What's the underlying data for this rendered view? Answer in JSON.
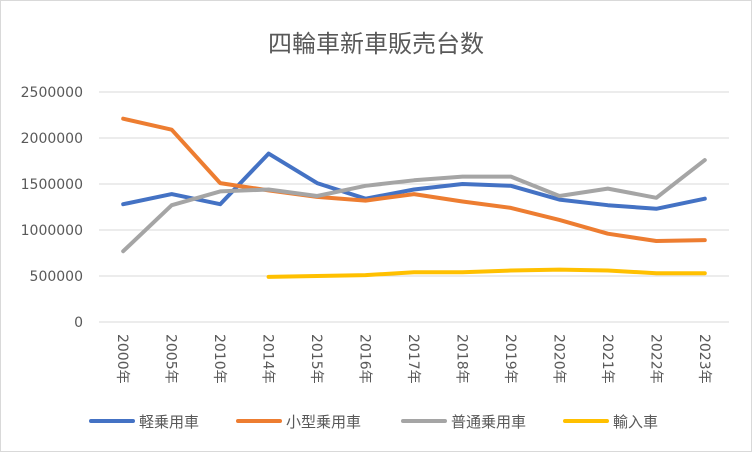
{
  "chart_data": {
    "type": "line",
    "title": "四輪車新車販売台数",
    "categories": [
      "2000年",
      "2005年",
      "2010年",
      "2014年",
      "2015年",
      "2016年",
      "2017年",
      "2018年",
      "2019年",
      "2020年",
      "2021年",
      "2022年",
      "2023年"
    ],
    "y_ticks": [
      "0",
      "500000",
      "1000000",
      "1500000",
      "2000000",
      "2500000"
    ],
    "ylim": [
      0,
      2500000
    ],
    "grid": true,
    "legend_position": "bottom",
    "series": [
      {
        "name": "軽乗用車",
        "color": "#4472C4",
        "values": [
          1280000,
          1390000,
          1280000,
          1830000,
          1510000,
          1340000,
          1440000,
          1500000,
          1480000,
          1330000,
          1270000,
          1230000,
          1340000
        ]
      },
      {
        "name": "小型乗用車",
        "color": "#ED7D31",
        "values": [
          2210000,
          2090000,
          1510000,
          1430000,
          1360000,
          1320000,
          1390000,
          1310000,
          1240000,
          1110000,
          960000,
          880000,
          890000
        ]
      },
      {
        "name": "普通乗用車",
        "color": "#A5A5A5",
        "values": [
          770000,
          1270000,
          1420000,
          1440000,
          1370000,
          1480000,
          1540000,
          1580000,
          1580000,
          1370000,
          1450000,
          1350000,
          1760000
        ]
      },
      {
        "name": "輸入車",
        "color": "#FFC000",
        "values": [
          null,
          null,
          null,
          490000,
          500000,
          510000,
          540000,
          540000,
          560000,
          570000,
          560000,
          530000,
          530000
        ]
      }
    ]
  }
}
